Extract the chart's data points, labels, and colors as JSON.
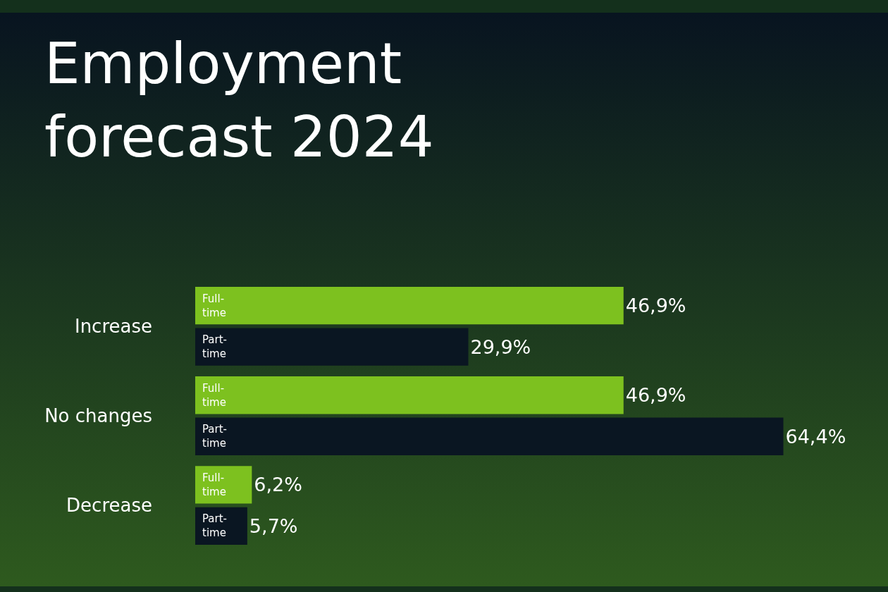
{
  "chart_data": {
    "type": "bar",
    "orientation": "horizontal",
    "title": "Employment forecast 2024",
    "categories": [
      "Increase",
      "No changes",
      "Decrease"
    ],
    "tick_labels": "y",
    "grid": false,
    "series": [
      {
        "name": "Full-time",
        "color": "#7dc11f",
        "values": [
          46.9,
          46.9,
          6.2
        ],
        "value_labels": [
          "46,9%",
          "46,9%",
          "6,2%"
        ]
      },
      {
        "name": "Part-time",
        "color": "#0a1622",
        "values": [
          29.9,
          64.4,
          5.7
        ],
        "value_labels": [
          "29,9%",
          "64,4%",
          "5,7%"
        ]
      }
    ]
  }
}
